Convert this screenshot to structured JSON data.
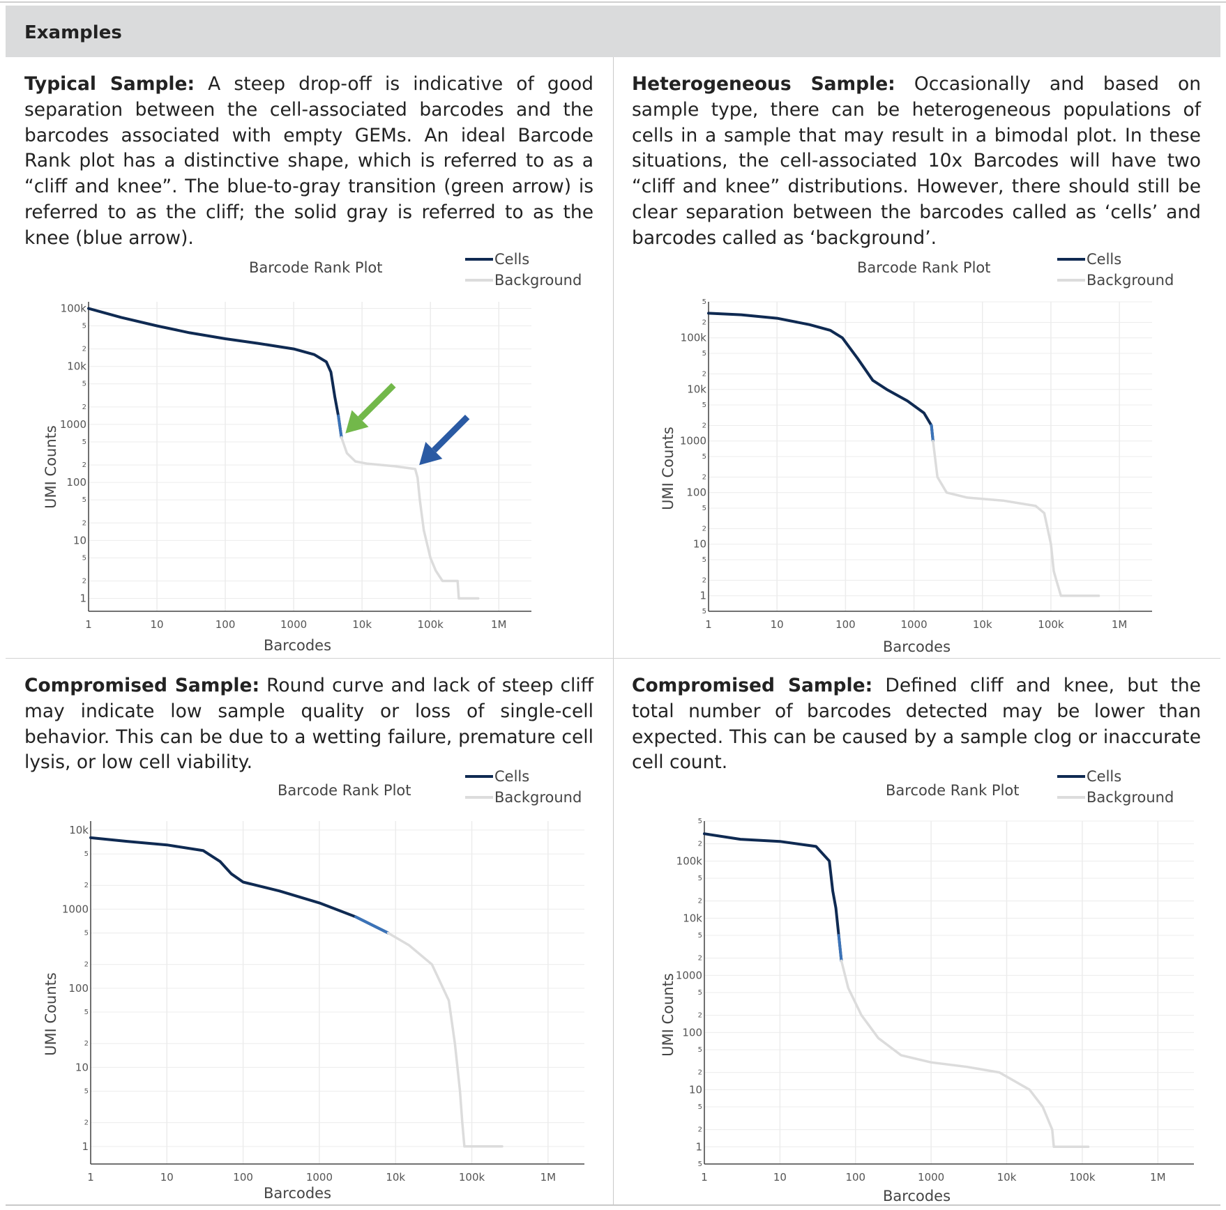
{
  "header": {
    "title": "Examples"
  },
  "panels": [
    {
      "heading": "Typical Sample:",
      "body": " A steep drop-off is indicative of good separation between the cell-associated barcodes and the barcodes associated with empty GEMs. An ideal Barcode Rank plot has a distinctive shape, which is referred to as a “cliff and knee”. The blue-to-gray transition (green arrow) is referred to as the cliff; the solid gray is referred to as the knee (blue arrow)."
    },
    {
      "heading": "Heterogeneous Sample:",
      "body": " Occasionally and based on sample type, there can be heterogeneous populations of cells in a sample that may result in a bimodal plot. In these situations, the cell-associated 10x Barcodes will have two “cliff and knee” distributions. However, there should still be clear separation between the barcodes called as ‘cells’ and barcodes called as ‘background’."
    },
    {
      "heading": "Compromised Sample:",
      "body": " Round curve and lack of steep cliff may indicate low sample quality or loss of single-cell behavior. This can be due to a wetting failure, premature cell lysis, or low cell viability."
    },
    {
      "heading": "Compromised Sample:",
      "body": " Defined cliff and knee, but the total number of barcodes detected may be lower than expected. This can be caused by a sample clog or inaccurate cell count."
    }
  ],
  "colors": {
    "cells": "#0f2a52",
    "cells_transition": "#3b73b8",
    "background": "#dcdcdc",
    "grid": "#ececec",
    "green_arrow": "#72b84a",
    "blue_arrow": "#2a5aa3"
  },
  "chart_data": [
    {
      "type": "line",
      "title": "Barcode Rank Plot",
      "xlabel": "Barcodes",
      "ylabel": "UMI Counts",
      "xscale": "log",
      "yscale": "log",
      "xlim": [
        1,
        3000000
      ],
      "ylim": [
        0.6,
        130000
      ],
      "x_ticks": [
        "1",
        "10",
        "100",
        "1000",
        "10k",
        "100k",
        "1M"
      ],
      "y_ticks": [
        "1",
        "2",
        "5",
        "10",
        "2",
        "5",
        "100",
        "2",
        "5",
        "1000",
        "2",
        "5",
        "10k",
        "2",
        "5",
        "100k"
      ],
      "legend": [
        "Cells",
        "Background"
      ],
      "legend_position": "top-right",
      "series": [
        {
          "name": "Cells",
          "points": [
            [
              1,
              100000
            ],
            [
              3,
              70000
            ],
            [
              10,
              50000
            ],
            [
              30,
              38000
            ],
            [
              100,
              30000
            ],
            [
              300,
              25000
            ],
            [
              1000,
              20000
            ],
            [
              2000,
              16000
            ],
            [
              3000,
              12000
            ],
            [
              3500,
              8000
            ],
            [
              4000,
              3000
            ],
            [
              4500,
              1400
            ],
            [
              5000,
              600
            ]
          ]
        },
        {
          "name": "Background",
          "points": [
            [
              5000,
              600
            ],
            [
              6000,
              320
            ],
            [
              8000,
              230
            ],
            [
              12000,
              210
            ],
            [
              30000,
              190
            ],
            [
              60000,
              170
            ],
            [
              65000,
              120
            ],
            [
              70000,
              50
            ],
            [
              80000,
              15
            ],
            [
              100000,
              5
            ],
            [
              120000,
              3
            ],
            [
              150000,
              2
            ],
            [
              250000,
              2
            ],
            [
              260000,
              1
            ],
            [
              500000,
              1
            ]
          ]
        }
      ],
      "annotations": [
        {
          "label": "green arrow",
          "meaning": "cliff",
          "x": 5000,
          "y": 600
        },
        {
          "label": "blue arrow",
          "meaning": "knee",
          "x": 60000,
          "y": 170
        }
      ]
    },
    {
      "type": "line",
      "title": "Barcode Rank Plot",
      "xlabel": "Barcodes",
      "ylabel": "UMI Counts",
      "xscale": "log",
      "yscale": "log",
      "xlim": [
        1,
        3000000
      ],
      "ylim": [
        0.5,
        500000
      ],
      "x_ticks": [
        "1",
        "10",
        "100",
        "1000",
        "10k",
        "100k",
        "1M"
      ],
      "y_ticks": [
        "5",
        "1",
        "2",
        "5",
        "10",
        "2",
        "5",
        "100",
        "2",
        "5",
        "1000",
        "2",
        "5",
        "10k",
        "2",
        "5",
        "100k",
        "2",
        "5"
      ],
      "legend": [
        "Cells",
        "Background"
      ],
      "legend_position": "top-right",
      "series": [
        {
          "name": "Cells",
          "points": [
            [
              1,
              300000
            ],
            [
              3,
              280000
            ],
            [
              10,
              240000
            ],
            [
              30,
              180000
            ],
            [
              60,
              140000
            ],
            [
              90,
              100000
            ],
            [
              150,
              40000
            ],
            [
              250,
              15000
            ],
            [
              400,
              10000
            ],
            [
              800,
              6000
            ],
            [
              1400,
              3500
            ],
            [
              1800,
              2000
            ],
            [
              1900,
              1000
            ]
          ]
        },
        {
          "name": "Background",
          "points": [
            [
              1900,
              1000
            ],
            [
              2200,
              200
            ],
            [
              3000,
              100
            ],
            [
              6000,
              80
            ],
            [
              20000,
              70
            ],
            [
              60000,
              55
            ],
            [
              80000,
              40
            ],
            [
              100000,
              10
            ],
            [
              110000,
              3
            ],
            [
              120000,
              2
            ],
            [
              140000,
              1
            ],
            [
              500000,
              1
            ]
          ]
        }
      ]
    },
    {
      "type": "line",
      "title": "Barcode Rank Plot",
      "xlabel": "Barcodes",
      "ylabel": "UMI Counts",
      "xscale": "log",
      "yscale": "log",
      "xlim": [
        1,
        3000000
      ],
      "ylim": [
        0.6,
        13000
      ],
      "x_ticks": [
        "1",
        "10",
        "100",
        "1000",
        "10k",
        "100k",
        "1M"
      ],
      "y_ticks": [
        "1",
        "2",
        "5",
        "10",
        "2",
        "5",
        "100",
        "2",
        "5",
        "1000",
        "2",
        "5",
        "10k"
      ],
      "legend": [
        "Cells",
        "Background"
      ],
      "legend_position": "top-right",
      "series": [
        {
          "name": "Cells",
          "points": [
            [
              1,
              8000
            ],
            [
              3,
              7200
            ],
            [
              10,
              6500
            ],
            [
              30,
              5500
            ],
            [
              50,
              4000
            ],
            [
              70,
              2800
            ],
            [
              100,
              2200
            ],
            [
              300,
              1700
            ],
            [
              1000,
              1200
            ],
            [
              3000,
              800
            ],
            [
              8000,
              500
            ]
          ]
        },
        {
          "name": "Background",
          "points": [
            [
              8000,
              500
            ],
            [
              15000,
              350
            ],
            [
              30000,
              200
            ],
            [
              50000,
              70
            ],
            [
              60000,
              20
            ],
            [
              70000,
              5
            ],
            [
              75000,
              2
            ],
            [
              80000,
              1
            ],
            [
              250000,
              1
            ]
          ]
        }
      ]
    },
    {
      "type": "line",
      "title": "Barcode Rank Plot",
      "xlabel": "Barcodes",
      "ylabel": "UMI Counts",
      "xscale": "log",
      "yscale": "log",
      "xlim": [
        1,
        3000000
      ],
      "ylim": [
        0.5,
        500000
      ],
      "x_ticks": [
        "1",
        "10",
        "100",
        "1000",
        "10k",
        "100k",
        "1M"
      ],
      "y_ticks": [
        "5",
        "1",
        "2",
        "5",
        "10",
        "2",
        "5",
        "100",
        "2",
        "5",
        "1000",
        "2",
        "5",
        "10k",
        "2",
        "5",
        "100k",
        "2",
        "5"
      ],
      "legend": [
        "Cells",
        "Background"
      ],
      "legend_position": "top-right",
      "series": [
        {
          "name": "Cells",
          "points": [
            [
              1,
              300000
            ],
            [
              3,
              240000
            ],
            [
              10,
              220000
            ],
            [
              30,
              180000
            ],
            [
              45,
              100000
            ],
            [
              50,
              30000
            ],
            [
              55,
              15000
            ],
            [
              60,
              5000
            ],
            [
              65,
              1800
            ]
          ]
        },
        {
          "name": "Background",
          "points": [
            [
              65,
              1800
            ],
            [
              80,
              600
            ],
            [
              120,
              200
            ],
            [
              200,
              80
            ],
            [
              400,
              40
            ],
            [
              1000,
              30
            ],
            [
              3000,
              25
            ],
            [
              8000,
              20
            ],
            [
              20000,
              10
            ],
            [
              30000,
              5
            ],
            [
              40000,
              2
            ],
            [
              42000,
              1
            ],
            [
              120000,
              1
            ]
          ]
        }
      ]
    }
  ]
}
